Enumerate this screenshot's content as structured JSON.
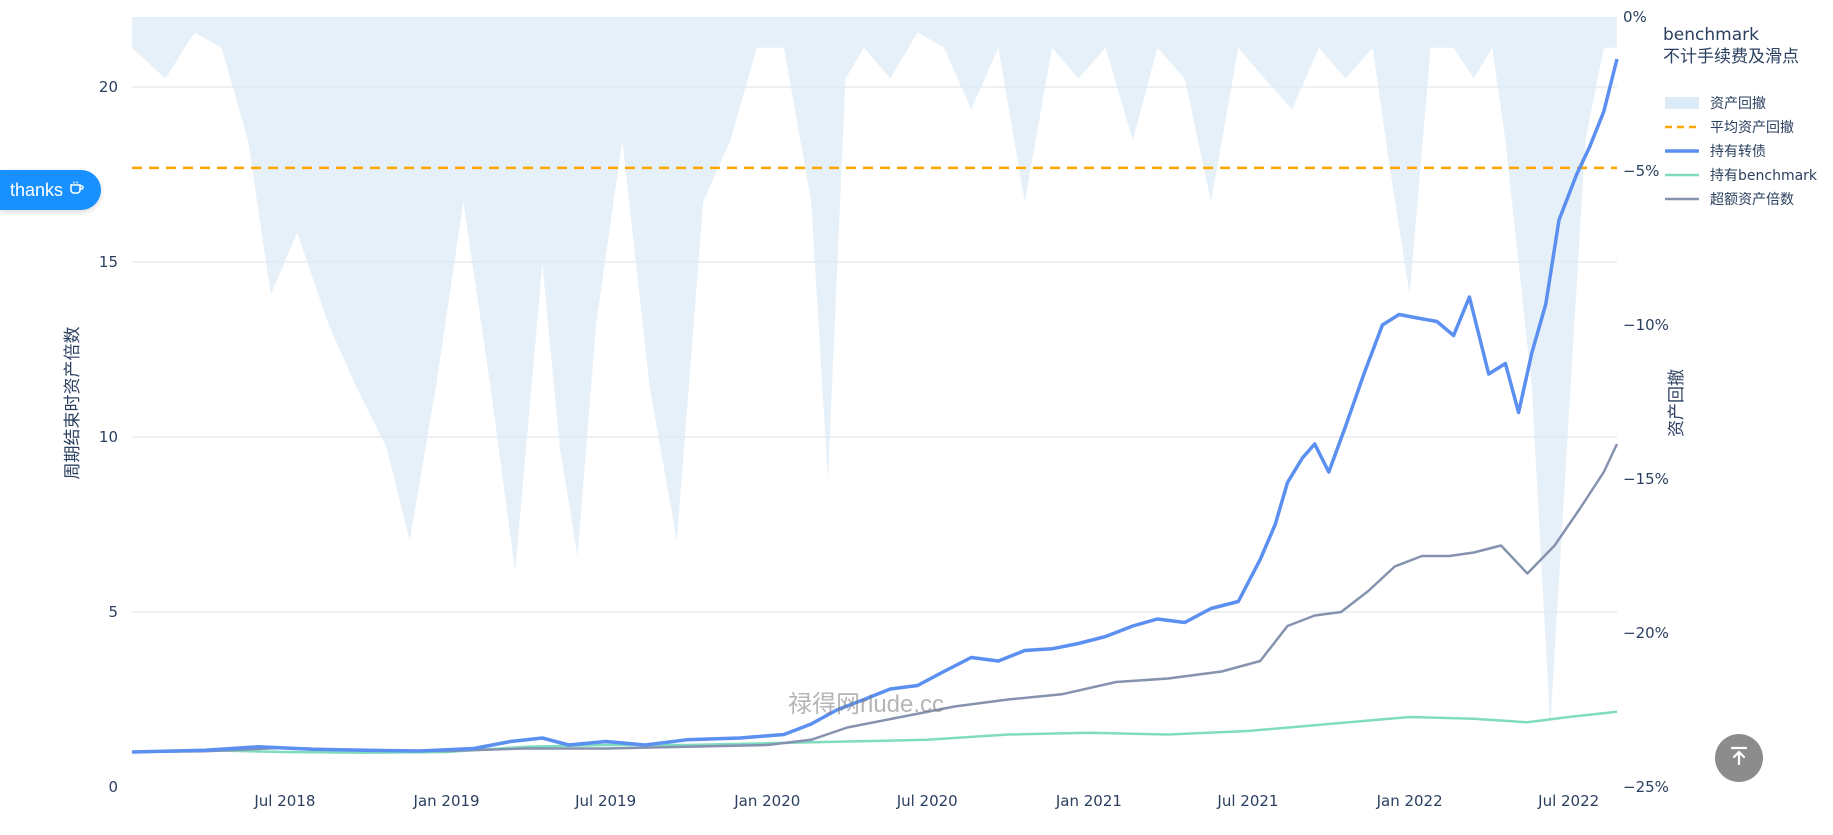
{
  "thanks_button": {
    "label": "thanks",
    "icon": "coffee-cup-icon"
  },
  "back_to_top": {
    "icon": "arrow-up-to-line-icon"
  },
  "watermark": "禄得网rlude.cc",
  "chart_data": {
    "type": "line",
    "legend_title": [
      "benchmark",
      "不计手续费及滑点"
    ],
    "legend_placement": "top-right",
    "xlabel": "",
    "ylabel": "周期结束时资产倍数",
    "y2label": "资产回撤",
    "ylim": [
      0,
      22
    ],
    "y2lim": [
      -25,
      0
    ],
    "xlim": [
      "2018-01-08",
      "2022-08-25"
    ],
    "grid": true,
    "x_ticks": [
      {
        "date": "2018-07-01",
        "label": "Jul 2018"
      },
      {
        "date": "2019-01-01",
        "label": "Jan 2019"
      },
      {
        "date": "2019-07-01",
        "label": "Jul 2019"
      },
      {
        "date": "2020-01-01",
        "label": "Jan 2020"
      },
      {
        "date": "2020-07-01",
        "label": "Jul 2020"
      },
      {
        "date": "2021-01-01",
        "label": "Jan 2021"
      },
      {
        "date": "2021-07-01",
        "label": "Jul 2021"
      },
      {
        "date": "2022-01-01",
        "label": "Jan 2022"
      },
      {
        "date": "2022-07-01",
        "label": "Jul 2022"
      }
    ],
    "y_ticks": [
      {
        "value": 0,
        "label": "0"
      },
      {
        "value": 5,
        "label": "5"
      },
      {
        "value": 10,
        "label": "10"
      },
      {
        "value": 15,
        "label": "15"
      },
      {
        "value": 20,
        "label": "20"
      }
    ],
    "y2_ticks": [
      {
        "value": 0,
        "label": "0%"
      },
      {
        "value": -5,
        "label": "−5%"
      },
      {
        "value": -10,
        "label": "−10%"
      },
      {
        "value": -15,
        "label": "−15%"
      },
      {
        "value": -20,
        "label": "−20%"
      },
      {
        "value": -25,
        "label": "−25%"
      }
    ],
    "series": [
      {
        "name": "资产回撤",
        "kind": "area",
        "axis": "y2",
        "color": "#dcebf6",
        "x": [
          "2018-01-08",
          "2018-02-15",
          "2018-03-20",
          "2018-04-20",
          "2018-05-20",
          "2018-06-15",
          "2018-07-15",
          "2018-08-20",
          "2018-09-20",
          "2018-10-25",
          "2018-11-20",
          "2018-12-20",
          "2019-01-20",
          "2019-02-20",
          "2019-03-20",
          "2019-04-20",
          "2019-05-10",
          "2019-05-30",
          "2019-06-20",
          "2019-07-20",
          "2019-08-20",
          "2019-09-20",
          "2019-10-20",
          "2019-11-20",
          "2019-12-20",
          "2020-01-20",
          "2020-02-20",
          "2020-03-10",
          "2020-03-30",
          "2020-04-20",
          "2020-05-20",
          "2020-06-20",
          "2020-07-20",
          "2020-08-20",
          "2020-09-20",
          "2020-10-20",
          "2020-11-20",
          "2020-12-20",
          "2021-01-20",
          "2021-02-20",
          "2021-03-20",
          "2021-04-20",
          "2021-05-20",
          "2021-06-20",
          "2021-07-20",
          "2021-08-20",
          "2021-09-20",
          "2021-10-20",
          "2021-11-20",
          "2021-12-10",
          "2022-01-01",
          "2022-01-25",
          "2022-02-20",
          "2022-03-15",
          "2022-04-05",
          "2022-04-20",
          "2022-05-05",
          "2022-05-20",
          "2022-06-10",
          "2022-07-01",
          "2022-07-20",
          "2022-08-10",
          "2022-08-25"
        ],
        "values": [
          -1,
          -2,
          -0.5,
          -1,
          -4,
          -9,
          -7,
          -10,
          -12,
          -14,
          -17,
          -12,
          -6,
          -12,
          -18,
          -8,
          -14,
          -17.5,
          -10,
          -4,
          -12,
          -17,
          -6,
          -4,
          -1,
          -1,
          -6,
          -15,
          -2,
          -1,
          -2,
          -0.5,
          -1,
          -3,
          -1,
          -6,
          -1,
          -2,
          -1,
          -4,
          -1,
          -2,
          -6,
          -1,
          -2,
          -3,
          -1,
          -2,
          -1,
          -5,
          -9,
          -1,
          -1,
          -2,
          -1,
          -4,
          -8,
          -12,
          -23,
          -13,
          -4,
          -1,
          -1
        ]
      },
      {
        "name": "平均资产回撤",
        "kind": "hline",
        "axis": "y2",
        "color": "#ffa500",
        "value": -4.9
      },
      {
        "name": "持有转债",
        "kind": "line",
        "axis": "y",
        "color": "#5b8ff0",
        "x": [
          "2018-01-08",
          "2018-04-01",
          "2018-06-01",
          "2018-08-01",
          "2018-10-01",
          "2018-12-01",
          "2019-02-01",
          "2019-03-15",
          "2019-04-20",
          "2019-05-20",
          "2019-07-01",
          "2019-08-15",
          "2019-10-01",
          "2019-12-01",
          "2020-01-20",
          "2020-02-20",
          "2020-03-20",
          "2020-04-20",
          "2020-05-20",
          "2020-06-20",
          "2020-07-20",
          "2020-08-20",
          "2020-09-20",
          "2020-10-20",
          "2020-11-20",
          "2020-12-20",
          "2021-01-20",
          "2021-02-20",
          "2021-03-20",
          "2021-04-20",
          "2021-05-20",
          "2021-06-20",
          "2021-07-15",
          "2021-08-01",
          "2021-08-15",
          "2021-09-01",
          "2021-09-15",
          "2021-10-01",
          "2021-10-20",
          "2021-11-10",
          "2021-12-01",
          "2021-12-20",
          "2022-01-10",
          "2022-02-01",
          "2022-02-20",
          "2022-03-10",
          "2022-04-01",
          "2022-04-20",
          "2022-05-05",
          "2022-05-20",
          "2022-06-05",
          "2022-06-20",
          "2022-07-10",
          "2022-07-25",
          "2022-08-10",
          "2022-08-25"
        ],
        "values": [
          1.0,
          1.05,
          1.15,
          1.08,
          1.05,
          1.03,
          1.1,
          1.3,
          1.4,
          1.2,
          1.3,
          1.2,
          1.35,
          1.4,
          1.5,
          1.8,
          2.2,
          2.5,
          2.8,
          2.9,
          3.3,
          3.7,
          3.6,
          3.9,
          3.95,
          4.1,
          4.3,
          4.6,
          4.8,
          4.7,
          5.1,
          5.3,
          6.5,
          7.5,
          8.7,
          9.4,
          9.8,
          9.0,
          10.3,
          11.8,
          13.2,
          13.5,
          13.4,
          13.3,
          12.9,
          14.0,
          11.8,
          12.1,
          10.7,
          12.4,
          13.8,
          16.2,
          17.5,
          18.3,
          19.3,
          20.8
        ]
      },
      {
        "name": "持有benchmark",
        "kind": "line",
        "axis": "y",
        "color": "#7fdcbf",
        "x": [
          "2018-01-08",
          "2018-04-01",
          "2018-07-01",
          "2018-10-01",
          "2019-01-01",
          "2019-04-01",
          "2019-07-01",
          "2019-10-01",
          "2020-01-01",
          "2020-04-01",
          "2020-07-01",
          "2020-10-01",
          "2021-01-01",
          "2021-04-01",
          "2021-07-01",
          "2021-10-01",
          "2022-01-01",
          "2022-03-15",
          "2022-05-15",
          "2022-07-01",
          "2022-08-25"
        ],
        "values": [
          1.0,
          1.05,
          1.0,
          0.98,
          1.0,
          1.15,
          1.2,
          1.2,
          1.25,
          1.3,
          1.35,
          1.5,
          1.55,
          1.5,
          1.6,
          1.8,
          2.0,
          1.95,
          1.85,
          2.0,
          2.15
        ]
      },
      {
        "name": "超额资产倍数",
        "kind": "line",
        "axis": "y",
        "color": "#8593ae",
        "x": [
          "2018-01-08",
          "2018-04-01",
          "2018-07-01",
          "2018-10-01",
          "2019-01-01",
          "2019-04-01",
          "2019-07-01",
          "2019-10-01",
          "2020-01-01",
          "2020-02-20",
          "2020-04-01",
          "2020-06-01",
          "2020-08-01",
          "2020-10-01",
          "2020-12-01",
          "2021-02-01",
          "2021-04-01",
          "2021-06-01",
          "2021-07-15",
          "2021-08-15",
          "2021-09-15",
          "2021-10-15",
          "2021-11-15",
          "2021-12-15",
          "2022-01-15",
          "2022-02-15",
          "2022-03-15",
          "2022-04-15",
          "2022-05-15",
          "2022-06-15",
          "2022-07-15",
          "2022-08-10",
          "2022-08-25"
        ],
        "values": [
          1.0,
          1.02,
          1.12,
          1.04,
          1.03,
          1.1,
          1.1,
          1.15,
          1.2,
          1.35,
          1.7,
          2.0,
          2.3,
          2.5,
          2.65,
          3.0,
          3.1,
          3.3,
          3.6,
          4.6,
          4.9,
          5.0,
          5.6,
          6.3,
          6.6,
          6.6,
          6.7,
          6.9,
          6.1,
          6.9,
          8.0,
          9.0,
          9.8
        ]
      }
    ]
  }
}
